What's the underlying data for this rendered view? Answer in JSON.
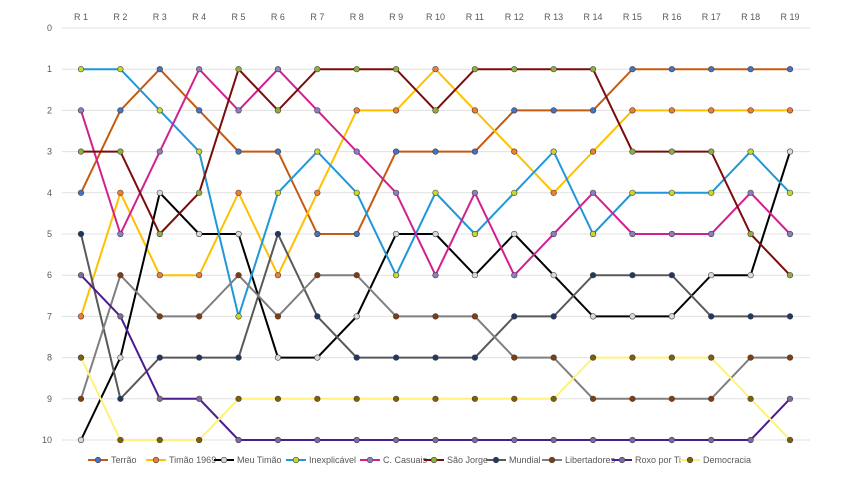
{
  "chart_data": {
    "type": "line",
    "subtype": "bump",
    "categories": [
      "R 1",
      "R 2",
      "R 3",
      "R 4",
      "R 5",
      "R 6",
      "R 7",
      "R 8",
      "R 9",
      "R 10",
      "R 11",
      "R 12",
      "R 13",
      "R 14",
      "R 15",
      "R 16",
      "R 17",
      "R 18",
      "R 19"
    ],
    "y_ticks": [
      0,
      1,
      2,
      3,
      4,
      5,
      6,
      7,
      8,
      9,
      10
    ],
    "ylim": [
      0,
      10
    ],
    "y_inverted": true,
    "x_axis_position": "top",
    "grid": true,
    "legend_position": "bottom",
    "series": [
      {
        "name": "Terrão",
        "color": "#C55A11",
        "marker": "#4472C4",
        "values": [
          4,
          2,
          1,
          2,
          3,
          3,
          5,
          5,
          3,
          3,
          3,
          2,
          2,
          2,
          1,
          1,
          1,
          1,
          1
        ]
      },
      {
        "name": "Timão 1969",
        "color": "#FFC000",
        "marker": "#ED7D31",
        "values": [
          7,
          4,
          6,
          6,
          4,
          6,
          4,
          2,
          2,
          1,
          2,
          3,
          4,
          3,
          2,
          2,
          2,
          2,
          2
        ]
      },
      {
        "name": "Meu Timão",
        "color": "#000000",
        "marker": "#D9D9D9",
        "values": [
          10,
          8,
          4,
          5,
          5,
          8,
          8,
          7,
          5,
          5,
          6,
          5,
          6,
          7,
          7,
          7,
          6,
          6,
          3
        ]
      },
      {
        "name": "Inexplicável",
        "color": "#1F97D8",
        "marker": "#C9D72C",
        "values": [
          1,
          1,
          2,
          3,
          7,
          4,
          3,
          4,
          6,
          4,
          5,
          4,
          3,
          5,
          4,
          4,
          4,
          3,
          4
        ]
      },
      {
        "name": "C. Casuais",
        "color": "#D3208F",
        "marker": "#8E7CC3",
        "values": [
          2,
          5,
          3,
          1,
          2,
          1,
          2,
          3,
          4,
          6,
          4,
          6,
          5,
          4,
          5,
          5,
          5,
          4,
          5
        ]
      },
      {
        "name": "São Jorge",
        "color": "#7B0C0C",
        "marker": "#8FAF3C",
        "values": [
          3,
          3,
          5,
          4,
          1,
          2,
          1,
          1,
          1,
          2,
          1,
          1,
          1,
          1,
          3,
          3,
          3,
          5,
          6
        ]
      },
      {
        "name": "Mundial",
        "color": "#595959",
        "marker": "#1F3864",
        "values": [
          5,
          9,
          8,
          8,
          8,
          5,
          7,
          8,
          8,
          8,
          8,
          7,
          7,
          6,
          6,
          6,
          7,
          7,
          7
        ]
      },
      {
        "name": "Libertadores",
        "color": "#7F7F7F",
        "marker": "#843C0C",
        "values": [
          9,
          6,
          7,
          7,
          6,
          7,
          6,
          6,
          7,
          7,
          7,
          8,
          8,
          9,
          9,
          9,
          9,
          8,
          8
        ]
      },
      {
        "name": "Roxo por Ti",
        "color": "#4B1C8F",
        "marker": "#7F6A9F",
        "values": [
          6,
          7,
          9,
          9,
          10,
          10,
          10,
          10,
          10,
          10,
          10,
          10,
          10,
          10,
          10,
          10,
          10,
          10,
          9
        ]
      },
      {
        "name": "Democracia",
        "color": "#FFF27A",
        "marker": "#806000",
        "values": [
          8,
          10,
          10,
          10,
          9,
          9,
          9,
          9,
          9,
          9,
          9,
          9,
          9,
          8,
          8,
          8,
          8,
          9,
          10
        ]
      }
    ]
  }
}
